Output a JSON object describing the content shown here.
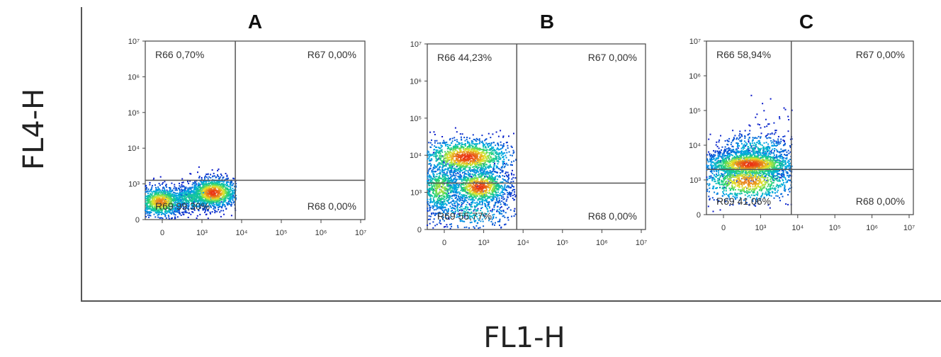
{
  "figure": {
    "xlabel": "FL1-H",
    "ylabel": "FL4-H"
  },
  "chart_data": [
    {
      "type": "scatter",
      "title": "A",
      "xticks": [
        "0",
        "10³",
        "10⁴",
        "10⁵",
        "10⁶",
        "10⁷"
      ],
      "yticks": [
        "0",
        "10³",
        "10⁴",
        "10⁵",
        "10⁶",
        "10⁷"
      ],
      "xlim": [
        0,
        5
      ],
      "ylim": [
        0,
        5
      ],
      "gate": {
        "x": 2.05,
        "y": 1.1
      },
      "quadrants": [
        {
          "region": "top-left",
          "label": "R66 0,70%"
        },
        {
          "region": "top-right",
          "label": "R67 0,00%"
        },
        {
          "region": "bottom-left",
          "label": "R69 99,30%"
        },
        {
          "region": "bottom-right",
          "label": "R68 0,00%"
        }
      ],
      "clusters": [
        {
          "x": 0.35,
          "y": 0.5,
          "sx": 0.28,
          "sy": 0.22,
          "n": 900
        },
        {
          "x": 1.55,
          "y": 0.75,
          "sx": 0.3,
          "sy": 0.22,
          "n": 1100
        },
        {
          "x": 1.05,
          "y": 0.6,
          "sx": 0.35,
          "sy": 0.2,
          "n": 500
        }
      ]
    },
    {
      "type": "scatter",
      "title": "B",
      "xticks": [
        "0",
        "10³",
        "10⁴",
        "10⁵",
        "10⁶",
        "10⁷"
      ],
      "yticks": [
        "0",
        "10³",
        "10⁴",
        "10⁵",
        "10⁶",
        "10⁷"
      ],
      "xlim": [
        0,
        5
      ],
      "ylim": [
        0,
        5
      ],
      "gate": {
        "x": 2.05,
        "y": 1.25
      },
      "quadrants": [
        {
          "region": "top-left",
          "label": "R66 44,23%"
        },
        {
          "region": "top-right",
          "label": "R67 0,00%"
        },
        {
          "region": "bottom-left",
          "label": "R69 55,77%"
        },
        {
          "region": "bottom-right",
          "label": "R68 0,00%"
        }
      ],
      "clusters": [
        {
          "x": 0.9,
          "y": 1.95,
          "sx": 0.55,
          "sy": 0.25,
          "n": 1300
        },
        {
          "x": 1.2,
          "y": 1.15,
          "sx": 0.35,
          "sy": 0.25,
          "n": 1000
        },
        {
          "x": 0.3,
          "y": 1.1,
          "sx": 0.25,
          "sy": 0.35,
          "n": 700
        },
        {
          "x": 1.0,
          "y": 0.5,
          "sx": 0.6,
          "sy": 0.3,
          "n": 400
        }
      ]
    },
    {
      "type": "scatter",
      "title": "C",
      "xticks": [
        "0",
        "10³",
        "10⁴",
        "10⁵",
        "10⁶",
        "10⁷"
      ],
      "yticks": [
        "0",
        "10³",
        "10⁴",
        "10⁵",
        "10⁶",
        "10⁷"
      ],
      "xlim": [
        0,
        5
      ],
      "ylim": [
        0,
        5
      ],
      "gate": {
        "x": 2.05,
        "y": 1.3
      },
      "quadrants": [
        {
          "region": "top-left",
          "label": "R66 58,94%"
        },
        {
          "region": "top-right",
          "label": "R67 0,00%"
        },
        {
          "region": "bottom-left",
          "label": "R69 41,06%"
        },
        {
          "region": "bottom-right",
          "label": "R68 0,00%"
        }
      ],
      "clusters": [
        {
          "x": 1.05,
          "y": 1.45,
          "sx": 0.6,
          "sy": 0.2,
          "n": 1600
        },
        {
          "x": 1.0,
          "y": 0.95,
          "sx": 0.6,
          "sy": 0.3,
          "n": 900
        },
        {
          "x": 1.2,
          "y": 1.9,
          "sx": 0.5,
          "sy": 0.25,
          "n": 400
        },
        {
          "x": 1.6,
          "y": 2.6,
          "sx": 0.3,
          "sy": 0.4,
          "n": 40
        }
      ]
    }
  ]
}
